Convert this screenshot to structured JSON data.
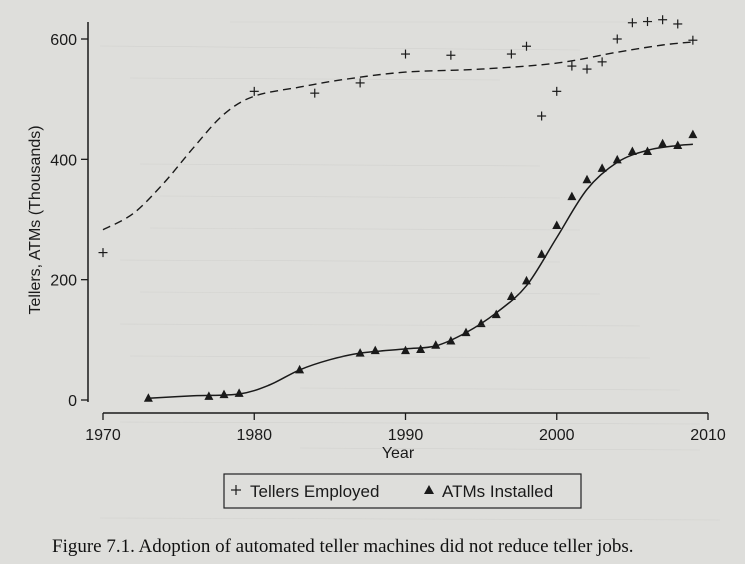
{
  "caption": "Figure 7.1. Adoption of automated teller machines did not reduce teller jobs.",
  "chart_data": {
    "type": "scatter",
    "xlabel": "Year",
    "ylabel": "Tellers, ATMs (Thousands)",
    "xlim": [
      1970,
      2010
    ],
    "ylim": [
      0,
      600
    ],
    "xticks": [
      1970,
      1980,
      1990,
      2000,
      2010
    ],
    "yticks": [
      0,
      200,
      400,
      600
    ],
    "legend_position": "bottom",
    "series": [
      {
        "name": "Tellers Employed",
        "marker": "plus",
        "points": [
          [
            1970,
            245
          ],
          [
            1980,
            513
          ],
          [
            1984,
            510
          ],
          [
            1987,
            527
          ],
          [
            1990,
            575
          ],
          [
            1993,
            573
          ],
          [
            1997,
            575
          ],
          [
            1998,
            588
          ],
          [
            1999,
            472
          ],
          [
            2000,
            513
          ],
          [
            2001,
            555
          ],
          [
            2002,
            550
          ],
          [
            2003,
            562
          ],
          [
            2004,
            600
          ],
          [
            2005,
            627
          ],
          [
            2006,
            629
          ],
          [
            2007,
            632
          ],
          [
            2008,
            625
          ],
          [
            2009,
            598
          ]
        ],
        "trend": [
          [
            1970,
            283
          ],
          [
            1972,
            310
          ],
          [
            1974,
            360
          ],
          [
            1976,
            420
          ],
          [
            1978,
            475
          ],
          [
            1980,
            505
          ],
          [
            1983,
            520
          ],
          [
            1986,
            533
          ],
          [
            1990,
            545
          ],
          [
            1995,
            550
          ],
          [
            2000,
            560
          ],
          [
            2004,
            578
          ],
          [
            2007,
            590
          ],
          [
            2009,
            595
          ]
        ]
      },
      {
        "name": "ATMs Installed",
        "marker": "triangle",
        "points": [
          [
            1973,
            3
          ],
          [
            1977,
            6
          ],
          [
            1978,
            9
          ],
          [
            1979,
            11
          ],
          [
            1983,
            50
          ],
          [
            1987,
            78
          ],
          [
            1988,
            82
          ],
          [
            1990,
            82
          ],
          [
            1991,
            84
          ],
          [
            1992,
            91
          ],
          [
            1993,
            98
          ],
          [
            1994,
            112
          ],
          [
            1995,
            127
          ],
          [
            1996,
            142
          ],
          [
            1997,
            172
          ],
          [
            1998,
            198
          ],
          [
            1999,
            242
          ],
          [
            2000,
            290
          ],
          [
            2001,
            338
          ],
          [
            2002,
            366
          ],
          [
            2003,
            385
          ],
          [
            2004,
            399
          ],
          [
            2005,
            413
          ],
          [
            2006,
            413
          ],
          [
            2007,
            426
          ],
          [
            2008,
            423
          ],
          [
            2009,
            441
          ]
        ],
        "trend": [
          [
            1973,
            3
          ],
          [
            1976,
            7
          ],
          [
            1979,
            10
          ],
          [
            1981,
            25
          ],
          [
            1983,
            50
          ],
          [
            1985,
            67
          ],
          [
            1987,
            78
          ],
          [
            1990,
            85
          ],
          [
            1992,
            90
          ],
          [
            1994,
            112
          ],
          [
            1996,
            145
          ],
          [
            1998,
            190
          ],
          [
            2000,
            270
          ],
          [
            2002,
            350
          ],
          [
            2004,
            395
          ],
          [
            2006,
            415
          ],
          [
            2008,
            423
          ],
          [
            2009,
            425
          ]
        ]
      }
    ]
  }
}
